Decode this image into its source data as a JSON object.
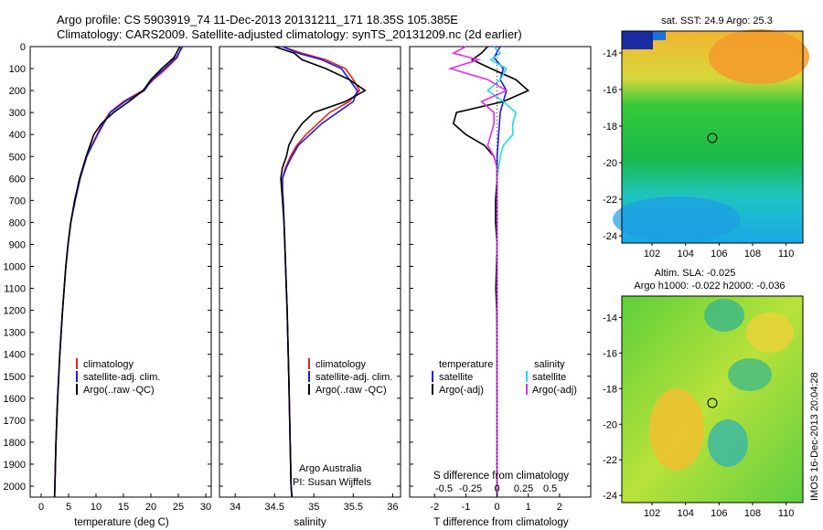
{
  "header": {
    "line1": "Argo profile: CS 5903919_74 11-Dec-2013 20131211_171 18.35S 105.385E",
    "line2": "Climatology: CARS2009. Satellite-adjusted climatology: synTS_20131209.nc (2d earlier)"
  },
  "colors": {
    "climatology": "#e8231c",
    "satellite": "#1a1ae6",
    "argo": "#000000",
    "sal_satellite": "#22d8e6",
    "sal_argo": "#e62ce6"
  },
  "y_ticks": [
    "0",
    "100",
    "200",
    "300",
    "400",
    "500",
    "600",
    "700",
    "800",
    "900",
    "1000",
    "1100",
    "1200",
    "1300",
    "1400",
    "1500",
    "1600",
    "1700",
    "1800",
    "1900",
    "2000"
  ],
  "panel_temp": {
    "ticks": [
      "0",
      "5",
      "10",
      "15",
      "20",
      "25",
      "30"
    ],
    "xlabel": "temperature (deg C)"
  },
  "panel_sal": {
    "ticks": [
      "34",
      "34.5",
      "35",
      "35.5",
      "36"
    ],
    "xlabel": "salinity",
    "credit1": "Argo Australia",
    "credit2": "PI: Susan Wijffels"
  },
  "legend_profiles": [
    "climatology",
    "satellite-adj. clim.",
    "Argo(..raw -QC)"
  ],
  "panel_diff": {
    "ticks_t": [
      "-2",
      "-1",
      "0",
      "1",
      "2"
    ],
    "ticks_s": [
      "-0.5",
      "-0.25",
      "0",
      "0.25",
      "0.5"
    ],
    "label_top": "S difference from climatology",
    "xlabel": "T difference from climatology",
    "legend_temp_title": "temperature",
    "legend_sal_title": "salinity",
    "legend_items": [
      "satellite",
      "Argo(-adj)",
      "satellite",
      "Argo(-adj)"
    ]
  },
  "map_sst": {
    "title": "sat. SST: 24.9  Argo: 25.3",
    "yticks": [
      "-14",
      "-16",
      "-18",
      "-20",
      "-22",
      "-24"
    ],
    "xticks": [
      "102",
      "104",
      "106",
      "108",
      "110"
    ]
  },
  "map_sla": {
    "title1": "Altim. SLA: -0.025",
    "title2": "Argo h1000: -0.022 h2000: -0.036",
    "yticks": [
      "-14",
      "-16",
      "-18",
      "-20",
      "-22",
      "-24"
    ],
    "xticks": [
      "102",
      "104",
      "106",
      "108",
      "110"
    ]
  },
  "stamp": "IMOS 16-Dec-2013 20:04:28",
  "chart_data": [
    {
      "type": "line",
      "title": "",
      "xlabel": "temperature (deg C)",
      "ylabel": "",
      "xlim": [
        -2,
        31
      ],
      "ylim": [
        2050,
        0
      ],
      "series": [
        {
          "name": "climatology",
          "depth": [
            0,
            50,
            100,
            150,
            200,
            250,
            300,
            350,
            400,
            450,
            500,
            600,
            700,
            800,
            900,
            1000,
            1200,
            1400,
            1600,
            1800,
            2000,
            2050
          ],
          "values": [
            25.6,
            24.8,
            22.8,
            20.5,
            18.5,
            15.0,
            12.5,
            11.2,
            10.2,
            9.2,
            8.3,
            7.1,
            6.2,
            5.4,
            4.9,
            4.5,
            3.9,
            3.4,
            3.0,
            2.7,
            2.5,
            2.45
          ]
        },
        {
          "name": "satellite-adj. clim.",
          "depth": [
            0,
            50,
            100,
            150,
            200,
            250,
            300,
            350,
            400,
            450,
            500,
            600,
            700,
            800,
            900,
            1000,
            1200,
            1400,
            1600,
            1800,
            2000,
            2050
          ],
          "values": [
            25.8,
            24.6,
            22.5,
            20.2,
            18.8,
            15.3,
            12.6,
            11.4,
            10.3,
            9.3,
            8.3,
            7.1,
            6.2,
            5.4,
            4.9,
            4.5,
            3.9,
            3.4,
            3.0,
            2.7,
            2.5,
            2.45
          ]
        },
        {
          "name": "Argo(..raw -QC)",
          "depth": [
            0,
            50,
            100,
            150,
            200,
            250,
            300,
            350,
            400,
            450,
            500,
            600,
            700,
            800,
            900,
            1000,
            1200,
            1400,
            1600,
            1800,
            2000,
            2050
          ],
          "values": [
            25.3,
            24.2,
            22.0,
            20.0,
            18.6,
            16.0,
            13.2,
            11.0,
            9.6,
            8.9,
            8.2,
            7.0,
            6.1,
            5.4,
            4.9,
            4.5,
            3.9,
            3.4,
            3.0,
            2.7,
            2.5,
            2.45
          ]
        }
      ]
    },
    {
      "type": "line",
      "title": "",
      "xlabel": "salinity",
      "ylabel": "",
      "xlim": [
        33.8,
        36.1
      ],
      "ylim": [
        2050,
        0
      ],
      "series": [
        {
          "name": "climatology",
          "depth": [
            0,
            30,
            60,
            100,
            150,
            200,
            250,
            300,
            350,
            400,
            450,
            500,
            550,
            600,
            650,
            700,
            800,
            900,
            1000,
            1200,
            1500,
            2000,
            2050
          ],
          "values": [
            34.6,
            34.85,
            35.15,
            35.4,
            35.5,
            35.58,
            35.45,
            35.2,
            35.05,
            34.9,
            34.78,
            34.7,
            34.64,
            34.6,
            34.6,
            34.61,
            34.62,
            34.63,
            34.64,
            34.66,
            34.68,
            34.71,
            34.72
          ]
        },
        {
          "name": "satellite-adj. clim.",
          "depth": [
            0,
            30,
            60,
            100,
            150,
            200,
            250,
            300,
            350,
            400,
            450,
            500,
            550,
            600,
            650,
            700,
            800,
            900,
            1000,
            1200,
            1500,
            2000,
            2050
          ],
          "values": [
            34.6,
            34.8,
            35.1,
            35.35,
            35.45,
            35.55,
            35.5,
            35.3,
            35.1,
            34.95,
            34.8,
            34.72,
            34.65,
            34.6,
            34.6,
            34.61,
            34.62,
            34.63,
            34.64,
            34.66,
            34.68,
            34.71,
            34.72
          ]
        },
        {
          "name": "Argo(..raw -QC)",
          "depth": [
            0,
            30,
            60,
            100,
            150,
            200,
            250,
            300,
            350,
            400,
            450,
            500,
            550,
            600,
            650,
            700,
            800,
            900,
            1000,
            1200,
            1500,
            2000,
            2050
          ],
          "values": [
            34.5,
            34.75,
            34.85,
            35.15,
            35.45,
            35.65,
            35.4,
            35.0,
            34.85,
            34.75,
            34.68,
            34.65,
            34.6,
            34.58,
            34.59,
            34.6,
            34.62,
            34.63,
            34.64,
            34.66,
            34.68,
            34.71,
            34.72
          ]
        }
      ]
    },
    {
      "type": "line",
      "title": "",
      "xlabel": "T difference from climatology",
      "ylabel": "",
      "xlim": [
        -2.8,
        3.0
      ],
      "ylim": [
        2050,
        0
      ],
      "series": [
        {
          "name": "temperature satellite",
          "depth": [
            0,
            50,
            100,
            150,
            200,
            250,
            300,
            400,
            500,
            600,
            800,
            1000,
            1500,
            2050
          ],
          "values": [
            0.1,
            -0.1,
            0.2,
            0.1,
            0.3,
            0.2,
            0.1,
            0.05,
            0.0,
            0.0,
            0.0,
            0.0,
            0.0,
            0.0
          ]
        },
        {
          "name": "temperature Argo(-adj)",
          "depth": [
            0,
            30,
            60,
            100,
            150,
            200,
            250,
            300,
            350,
            400,
            450,
            500,
            550,
            600,
            700,
            800,
            900,
            1000,
            1100,
            1200,
            1500,
            2050
          ],
          "values": [
            -0.3,
            -0.5,
            -0.8,
            -0.2,
            0.6,
            1.0,
            0.2,
            -1.3,
            -1.4,
            -1.0,
            -0.4,
            -0.1,
            0.0,
            0.0,
            -0.05,
            -0.05,
            0.0,
            -0.02,
            -0.04,
            -0.01,
            0.0,
            0.0
          ]
        },
        {
          "name": "salinity satellite",
          "depth": [
            0,
            30,
            60,
            100,
            150,
            200,
            250,
            300,
            350,
            400,
            450,
            500,
            600,
            700,
            1000,
            1500,
            2050
          ],
          "values": [
            -0.1,
            0.1,
            -0.2,
            0.3,
            0.1,
            -0.3,
            0.2,
            0.6,
            0.5,
            0.5,
            0.2,
            0.1,
            0.0,
            0.0,
            0.0,
            0.0,
            0.0
          ]
        },
        {
          "name": "salinity Argo(-adj)",
          "depth": [
            0,
            30,
            60,
            100,
            150,
            200,
            250,
            300,
            350,
            400,
            450,
            500,
            550,
            600,
            700,
            1000,
            1500,
            2050
          ],
          "values": [
            -1.0,
            -1.4,
            -0.6,
            -1.5,
            -0.3,
            0.3,
            -0.5,
            -0.1,
            -0.1,
            -0.2,
            -0.3,
            -0.1,
            0.0,
            0.0,
            0.0,
            0.0,
            0.0,
            0.0
          ]
        }
      ]
    }
  ]
}
